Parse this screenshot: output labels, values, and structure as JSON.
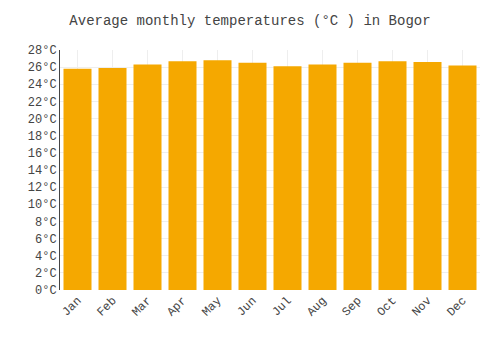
{
  "chart_data": {
    "type": "bar",
    "title": "Average monthly temperatures (°C ) in Bogor",
    "categories": [
      "Jan",
      "Feb",
      "Mar",
      "Apr",
      "May",
      "Jun",
      "Jul",
      "Aug",
      "Sep",
      "Oct",
      "Nov",
      "Dec"
    ],
    "values": [
      25.8,
      25.9,
      26.3,
      26.7,
      26.8,
      26.5,
      26.1,
      26.3,
      26.5,
      26.7,
      26.6,
      26.2
    ],
    "color": "#F5A800",
    "ylim": [
      0,
      28
    ],
    "yticks": [
      {
        "value": 0,
        "label": "0°C"
      },
      {
        "value": 2,
        "label": "2°C"
      },
      {
        "value": 4,
        "label": "4°C"
      },
      {
        "value": 6,
        "label": "6°C"
      },
      {
        "value": 8,
        "label": "8°C"
      },
      {
        "value": 10,
        "label": "10°C"
      },
      {
        "value": 12,
        "label": "12°C"
      },
      {
        "value": 14,
        "label": "14°C"
      },
      {
        "value": 16,
        "label": "16°C"
      },
      {
        "value": 18,
        "label": "18°C"
      },
      {
        "value": 20,
        "label": "20°C"
      },
      {
        "value": 22,
        "label": "22°C"
      },
      {
        "value": 24,
        "label": "24°C"
      },
      {
        "value": 26,
        "label": "26°C"
      },
      {
        "value": 28,
        "label": "28°C"
      }
    ],
    "grid": true
  }
}
